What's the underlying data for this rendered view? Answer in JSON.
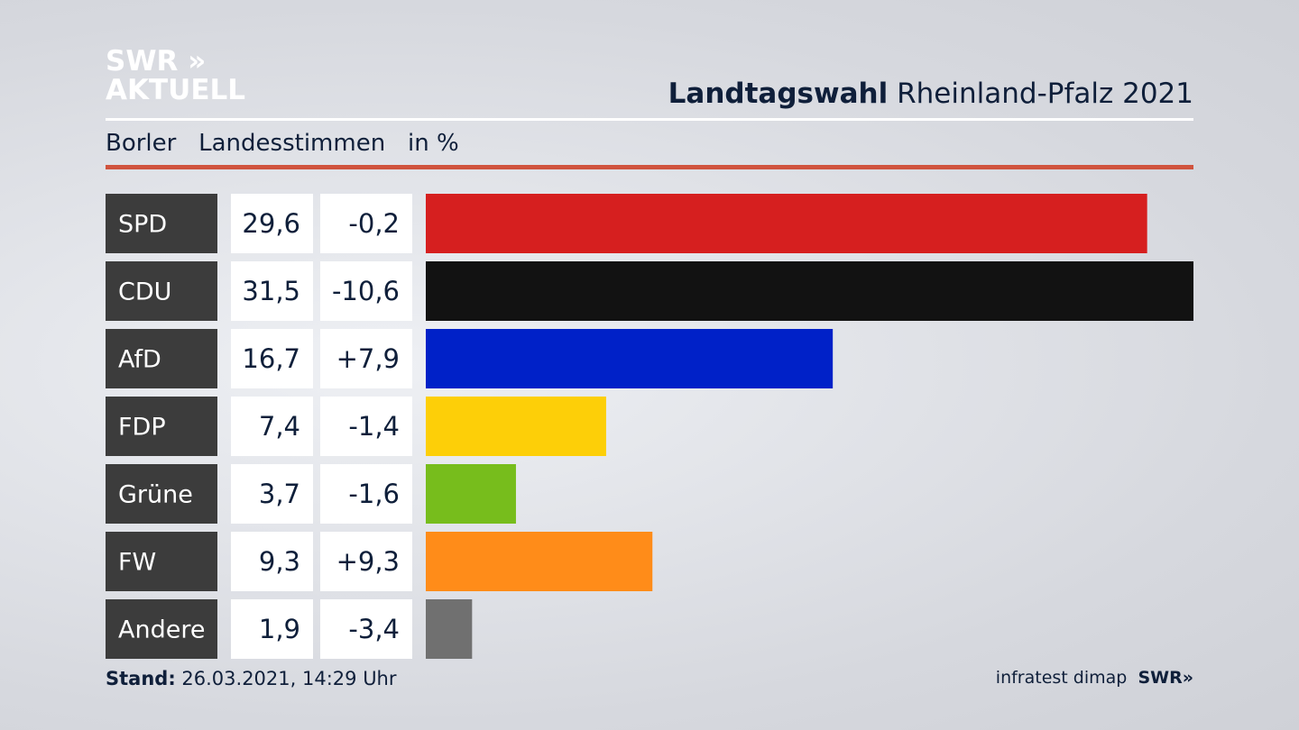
{
  "logo": {
    "top": "SWR",
    "bottom": "AKTUELL"
  },
  "chart_data": {
    "type": "bar",
    "title_bold": "Landtagswahl",
    "title": "Rheinland-Pfalz 2021",
    "subtitle": [
      "Borler",
      "Landesstimmen",
      "in %"
    ],
    "categories": [
      "SPD",
      "CDU",
      "AfD",
      "FDP",
      "Grüne",
      "FW",
      "Andere"
    ],
    "values": [
      29.6,
      31.5,
      16.7,
      7.4,
      3.7,
      9.3,
      1.9
    ],
    "value_labels": [
      "29,6",
      "31,5",
      "16,7",
      "7,4",
      "3,7",
      "9,3",
      "1,9"
    ],
    "changes": [
      -0.2,
      -10.6,
      7.9,
      -1.4,
      -1.6,
      9.3,
      -3.4
    ],
    "change_labels": [
      "-0,2",
      "-10,6",
      "+7,9",
      "-1,4",
      "-1,6",
      "+9,3",
      "-3,4"
    ],
    "colors": [
      "#d61f1f",
      "#121212",
      "#0021c8",
      "#fdcf08",
      "#77bd1c",
      "#ff8c19",
      "#707070"
    ]
  },
  "footer": {
    "stand_label": "Stand:",
    "stand": "26.03.2021, 14:29 Uhr",
    "source": "infratest dimap",
    "brand": "SWR"
  }
}
